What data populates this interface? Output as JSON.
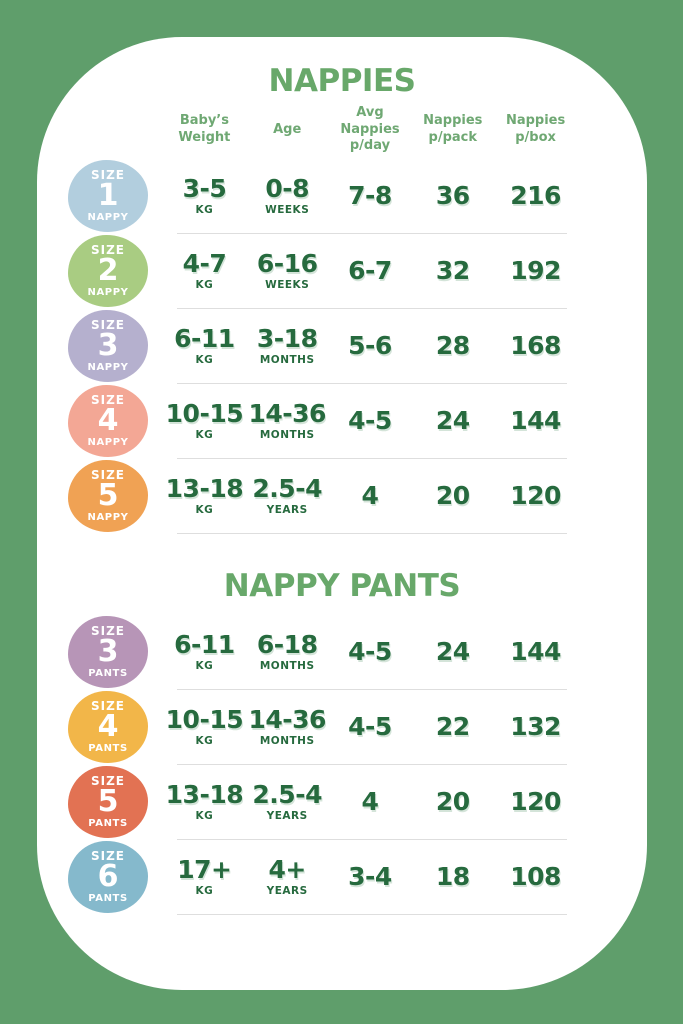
{
  "page": {
    "background_color": "#5f9e6b",
    "card_color": "#ffffff",
    "title_color": "#68a86a",
    "header_color": "#6fa873",
    "value_color": "#266a3e",
    "divider_color": "#dedede",
    "badge_text_color": "#ffffff"
  },
  "nappies": {
    "title": "NAPPIES",
    "columns": [
      {
        "line1": "Baby’s",
        "line2": "Weight"
      },
      {
        "line1": "Age",
        "line2": ""
      },
      {
        "line1": "Avg Nappies",
        "line2": "p/day"
      },
      {
        "line1": "Nappies",
        "line2": "p/pack"
      },
      {
        "line1": "Nappies",
        "line2": "p/box"
      }
    ],
    "rows": [
      {
        "badge": {
          "label_top": "SIZE",
          "number": "1",
          "label_bottom": "NAPPY",
          "color": "#b2cede"
        },
        "weight": "3-5",
        "weight_unit": "KG",
        "age": "0-8",
        "age_unit": "WEEKS",
        "per_day": "7-8",
        "per_pack": "36",
        "per_box": "216"
      },
      {
        "badge": {
          "label_top": "SIZE",
          "number": "2",
          "label_bottom": "NAPPY",
          "color": "#a9cc82"
        },
        "weight": "4-7",
        "weight_unit": "KG",
        "age": "6-16",
        "age_unit": "WEEKS",
        "per_day": "6-7",
        "per_pack": "32",
        "per_box": "192"
      },
      {
        "badge": {
          "label_top": "SIZE",
          "number": "3",
          "label_bottom": "NAPPY",
          "color": "#b5b0ce"
        },
        "weight": "6-11",
        "weight_unit": "KG",
        "age": "3-18",
        "age_unit": "MONTHS",
        "per_day": "5-6",
        "per_pack": "28",
        "per_box": "168"
      },
      {
        "badge": {
          "label_top": "SIZE",
          "number": "4",
          "label_bottom": "NAPPY",
          "color": "#f3a795"
        },
        "weight": "10-15",
        "weight_unit": "KG",
        "age": "14-36",
        "age_unit": "MONTHS",
        "per_day": "4-5",
        "per_pack": "24",
        "per_box": "144"
      },
      {
        "badge": {
          "label_top": "SIZE",
          "number": "5",
          "label_bottom": "NAPPY",
          "color": "#f0a254"
        },
        "weight": "13-18",
        "weight_unit": "KG",
        "age": "2.5-4",
        "age_unit": "YEARS",
        "per_day": "4",
        "per_pack": "20",
        "per_box": "120"
      }
    ]
  },
  "nappy_pants": {
    "title": "NAPPY PANTS",
    "rows": [
      {
        "badge": {
          "label_top": "SIZE",
          "number": "3",
          "label_bottom": "PANTS",
          "color": "#b795b7"
        },
        "weight": "6-11",
        "weight_unit": "KG",
        "age": "6-18",
        "age_unit": "MONTHS",
        "per_day": "4-5",
        "per_pack": "24",
        "per_box": "144"
      },
      {
        "badge": {
          "label_top": "SIZE",
          "number": "4",
          "label_bottom": "PANTS",
          "color": "#f2b649"
        },
        "weight": "10-15",
        "weight_unit": "KG",
        "age": "14-36",
        "age_unit": "MONTHS",
        "per_day": "4-5",
        "per_pack": "22",
        "per_box": "132"
      },
      {
        "badge": {
          "label_top": "SIZE",
          "number": "5",
          "label_bottom": "PANTS",
          "color": "#e27253"
        },
        "weight": "13-18",
        "weight_unit": "KG",
        "age": "2.5-4",
        "age_unit": "YEARS",
        "per_day": "4",
        "per_pack": "20",
        "per_box": "120"
      },
      {
        "badge": {
          "label_top": "SIZE",
          "number": "6",
          "label_bottom": "PANTS",
          "color": "#85b9cc"
        },
        "weight": "17+",
        "weight_unit": "KG",
        "age": "4+",
        "age_unit": "YEARS",
        "per_day": "3-4",
        "per_pack": "18",
        "per_box": "108"
      }
    ]
  },
  "chart_data": [
    {
      "type": "table",
      "title": "NAPPIES",
      "columns": [
        "Size",
        "Baby's Weight",
        "Age",
        "Avg Nappies p/day",
        "Nappies p/pack",
        "Nappies p/box"
      ],
      "rows": [
        [
          "Size 1 Nappy",
          "3-5 kg",
          "0-8 weeks",
          "7-8",
          36,
          216
        ],
        [
          "Size 2 Nappy",
          "4-7 kg",
          "6-16 weeks",
          "6-7",
          32,
          192
        ],
        [
          "Size 3 Nappy",
          "6-11 kg",
          "3-18 months",
          "5-6",
          28,
          168
        ],
        [
          "Size 4 Nappy",
          "10-15 kg",
          "14-36 months",
          "4-5",
          24,
          144
        ],
        [
          "Size 5 Nappy",
          "13-18 kg",
          "2.5-4 years",
          "4",
          20,
          120
        ]
      ]
    },
    {
      "type": "table",
      "title": "NAPPY PANTS",
      "columns": [
        "Size",
        "Baby's Weight",
        "Age",
        "Avg Nappies p/day",
        "Nappies p/pack",
        "Nappies p/box"
      ],
      "rows": [
        [
          "Size 3 Pants",
          "6-11 kg",
          "6-18 months",
          "4-5",
          24,
          144
        ],
        [
          "Size 4 Pants",
          "10-15 kg",
          "14-36 months",
          "4-5",
          22,
          132
        ],
        [
          "Size 5 Pants",
          "13-18 kg",
          "2.5-4 years",
          "4",
          20,
          120
        ],
        [
          "Size 6 Pants",
          "17+ kg",
          "4+ years",
          "3-4",
          18,
          108
        ]
      ]
    }
  ]
}
